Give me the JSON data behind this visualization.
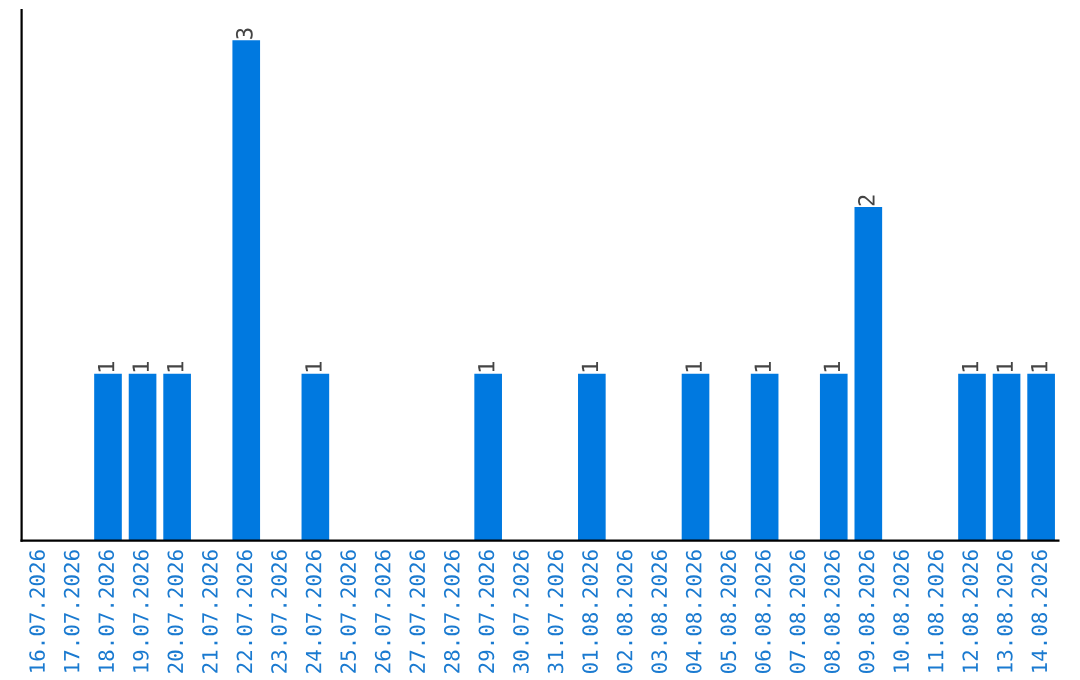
{
  "chart_data": {
    "type": "bar",
    "categories": [
      "16.07.2026",
      "17.07.2026",
      "18.07.2026",
      "19.07.2026",
      "20.07.2026",
      "21.07.2026",
      "22.07.2026",
      "23.07.2026",
      "24.07.2026",
      "25.07.2026",
      "26.07.2026",
      "27.07.2026",
      "28.07.2026",
      "29.07.2026",
      "30.07.2026",
      "31.07.2026",
      "01.08.2026",
      "02.08.2026",
      "03.08.2026",
      "04.08.2026",
      "05.08.2026",
      "06.08.2026",
      "07.08.2026",
      "08.08.2026",
      "09.08.2026",
      "10.08.2026",
      "11.08.2026",
      "12.08.2026",
      "13.08.2026",
      "14.08.2026"
    ],
    "values": [
      0,
      0,
      1,
      1,
      1,
      0,
      3,
      0,
      1,
      0,
      0,
      0,
      0,
      1,
      0,
      0,
      1,
      0,
      0,
      1,
      0,
      1,
      0,
      1,
      2,
      0,
      0,
      1,
      1,
      1
    ],
    "value_labels": [
      null,
      null,
      "1",
      "1",
      "1",
      null,
      "3",
      null,
      "1",
      null,
      null,
      null,
      null,
      "1",
      null,
      null,
      "1",
      null,
      null,
      "1",
      null,
      "1",
      null,
      "1",
      "2",
      null,
      null,
      "1",
      "1",
      "1"
    ],
    "color": "#0079e0",
    "grid": false,
    "legend": false
  }
}
